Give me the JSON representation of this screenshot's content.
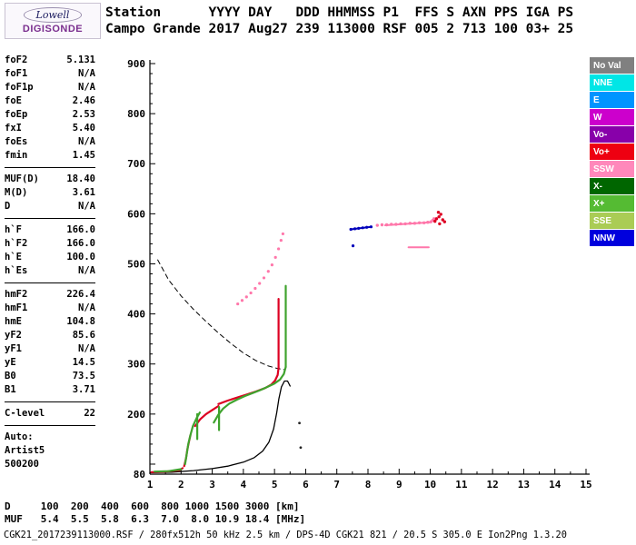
{
  "branding": {
    "name": "Lowell",
    "product": "DIGISONDE"
  },
  "header": {
    "line1": "Station      YYYY DAY   DDD HHMMSS P1  FFS S AXN PPS IGA PS",
    "line2": "Campo Grande 2017 Aug27 239 113000 RSF 005 2 713 100 03+ 25"
  },
  "params": {
    "groups": [
      {
        "rows": [
          {
            "label": "foF2",
            "value": "5.131"
          },
          {
            "label": "foF1",
            "value": "N/A"
          },
          {
            "label": "foF1p",
            "value": "N/A"
          },
          {
            "label": "foE",
            "value": "2.46"
          },
          {
            "label": "foEp",
            "value": "2.53"
          },
          {
            "label": "fxI",
            "value": "5.40"
          },
          {
            "label": "foEs",
            "value": "N/A"
          },
          {
            "label": "fmin",
            "value": "1.45"
          }
        ]
      },
      {
        "rows": [
          {
            "label": "MUF(D)",
            "value": "18.40"
          },
          {
            "label": "M(D)",
            "value": "3.61"
          },
          {
            "label": "D",
            "value": "N/A"
          }
        ]
      },
      {
        "rows": [
          {
            "label": "h`F",
            "value": "166.0"
          },
          {
            "label": "h`F2",
            "value": "166.0"
          },
          {
            "label": "h`E",
            "value": "100.0"
          },
          {
            "label": "h`Es",
            "value": "N/A"
          }
        ]
      },
      {
        "rows": [
          {
            "label": "hmF2",
            "value": "226.4"
          },
          {
            "label": "hmF1",
            "value": "N/A"
          },
          {
            "label": "hmE",
            "value": "104.8"
          },
          {
            "label": "yF2",
            "value": "85.6"
          },
          {
            "label": "yF1",
            "value": "N/A"
          },
          {
            "label": "yE",
            "value": "14.5"
          },
          {
            "label": "B0",
            "value": "73.5"
          },
          {
            "label": "B1",
            "value": "3.71"
          }
        ]
      },
      {
        "rows": [
          {
            "label": "C-level",
            "value": "22"
          }
        ]
      },
      {
        "rows": [
          {
            "label": "Auto:",
            "value": ""
          },
          {
            "label": "Artist5",
            "value": ""
          },
          {
            "label": "500200",
            "value": ""
          }
        ]
      }
    ]
  },
  "legend": {
    "items": [
      {
        "label": "No Val",
        "bg": "#808080",
        "fg": "#FFFFFF"
      },
      {
        "label": "NNE",
        "bg": "#00E6E6",
        "fg": "#FFFFFF"
      },
      {
        "label": "E",
        "bg": "#0094FF",
        "fg": "#FFFFFF"
      },
      {
        "label": "W",
        "bg": "#CC00CC",
        "fg": "#FFFFFF"
      },
      {
        "label": "Vo-",
        "bg": "#8800AA",
        "fg": "#FFFFFF"
      },
      {
        "label": "Vo+",
        "bg": "#EE0011",
        "fg": "#FFFFFF"
      },
      {
        "label": "SSW",
        "bg": "#FF88BB",
        "fg": "#FFFFFF"
      },
      {
        "label": "X-",
        "bg": "#006600",
        "fg": "#FFFFFF"
      },
      {
        "label": "X+",
        "bg": "#55BB33",
        "fg": "#FFFFFF"
      },
      {
        "label": "SSE",
        "bg": "#AACC55",
        "fg": "#FFFFFF"
      },
      {
        "label": "NNW",
        "bg": "#0000DD",
        "fg": "#FFFFFF"
      }
    ]
  },
  "chart_data": {
    "type": "scatter",
    "title": "Digisonde ionogram, Campo Grande, 2017 Aug27 113000",
    "xlabel": "[MHz]",
    "ylabel": "[km]",
    "xlim": [
      1,
      15
    ],
    "ylim": [
      80,
      900
    ],
    "grid": false,
    "legend_position": "right",
    "x_ticks": [
      1,
      2,
      3,
      4,
      5,
      6,
      7,
      8,
      9,
      10,
      11,
      12,
      13,
      14,
      15
    ],
    "y_tick_labels": [
      {
        "value": 900,
        "label": "900"
      },
      {
        "value": 800,
        "label": "800"
      },
      {
        "value": 700,
        "label": "700"
      },
      {
        "value": 600,
        "label": "600"
      },
      {
        "value": 500,
        "label": "500"
      },
      {
        "value": 400,
        "label": "400"
      },
      {
        "value": 300,
        "label": "300"
      },
      {
        "value": 200,
        "label": "200"
      },
      {
        "value": 80,
        "label": "80"
      }
    ],
    "series": [
      {
        "name": "muf-transmission-curve",
        "color": "#000000",
        "style": "dash",
        "width": 1,
        "segments": [
          [
            [
              1.25,
              508
            ],
            [
              1.6,
              468
            ],
            [
              2.0,
              436
            ],
            [
              2.4,
              409
            ],
            [
              2.8,
              385
            ],
            [
              3.2,
              362
            ],
            [
              3.6,
              341
            ],
            [
              4.0,
              322
            ],
            [
              4.4,
              307
            ],
            [
              4.8,
              296
            ],
            [
              5.1,
              291
            ],
            [
              5.3,
              289
            ]
          ]
        ]
      },
      {
        "name": "true-height-profile",
        "color": "#000000",
        "style": "line",
        "width": 1.3,
        "segments": [
          [
            [
              1.0,
              83
            ],
            [
              1.7,
              84
            ],
            [
              2.4,
              87
            ],
            [
              3.0,
              91
            ],
            [
              3.5,
              96
            ],
            [
              4.0,
              104
            ],
            [
              4.35,
              113
            ],
            [
              4.62,
              126
            ],
            [
              4.82,
              144
            ],
            [
              4.97,
              170
            ],
            [
              5.07,
              202
            ],
            [
              5.14,
              230
            ],
            [
              5.22,
              254
            ],
            [
              5.32,
              266
            ],
            [
              5.42,
              266
            ],
            [
              5.5,
              256
            ]
          ]
        ]
      },
      {
        "name": "o-trace",
        "color": "#DD0022",
        "style": "line",
        "width": 2.2,
        "segments": [
          [
            [
              1.05,
              84
            ],
            [
              1.5,
              85
            ],
            [
              1.95,
              88
            ],
            [
              2.05,
              92
            ]
          ],
          [
            [
              2.1,
              96
            ],
            [
              2.16,
              112
            ],
            [
              2.2,
              128
            ],
            [
              2.25,
              144
            ],
            [
              2.3,
              158
            ]
          ],
          [
            [
              2.45,
              176
            ],
            [
              2.62,
              190
            ],
            [
              2.8,
              200
            ],
            [
              3.0,
              208
            ],
            [
              3.2,
              216
            ]
          ],
          [
            [
              3.2,
              220
            ],
            [
              3.5,
              227
            ],
            [
              3.8,
              233
            ],
            [
              4.1,
              239
            ],
            [
              4.4,
              245
            ],
            [
              4.7,
              252
            ],
            [
              4.9,
              259
            ],
            [
              5.02,
              267
            ],
            [
              5.1,
              278
            ],
            [
              5.13,
              292
            ]
          ],
          [
            [
              5.13,
              292
            ],
            [
              5.13,
              430
            ]
          ]
        ]
      },
      {
        "name": "x-trace",
        "color": "#3FA32E",
        "style": "line",
        "width": 2.2,
        "segments": [
          [
            [
              1.15,
              85
            ],
            [
              1.6,
              86
            ],
            [
              2.0,
              90
            ]
          ],
          [
            [
              2.13,
              100
            ],
            [
              2.18,
              120
            ],
            [
              2.23,
              140
            ],
            [
              2.3,
              158
            ],
            [
              2.38,
              176
            ],
            [
              2.5,
              192
            ],
            [
              2.6,
              203
            ]
          ],
          [
            [
              2.52,
              150
            ],
            [
              2.52,
              200
            ]
          ],
          [
            [
              3.22,
              168
            ],
            [
              3.22,
              214
            ]
          ],
          [
            [
              3.05,
              183
            ],
            [
              3.2,
              199
            ],
            [
              3.35,
              211
            ],
            [
              3.55,
              221
            ],
            [
              3.8,
              229
            ],
            [
              4.05,
              236
            ],
            [
              4.3,
              242
            ],
            [
              4.55,
              248
            ],
            [
              4.8,
              255
            ],
            [
              5.0,
              261
            ],
            [
              5.18,
              269
            ],
            [
              5.3,
              280
            ],
            [
              5.36,
              294
            ]
          ],
          [
            [
              5.36,
              294
            ],
            [
              5.36,
              456
            ]
          ]
        ]
      },
      {
        "name": "second-hop-scatter",
        "color": "#FF77AA",
        "style": "dots",
        "width": 1.6,
        "points": [
          [
            3.82,
            420
          ],
          [
            3.96,
            427
          ],
          [
            4.1,
            434
          ],
          [
            4.24,
            442
          ],
          [
            4.38,
            451
          ],
          [
            4.52,
            461
          ],
          [
            4.66,
            472
          ],
          [
            4.8,
            485
          ],
          [
            4.92,
            498
          ],
          [
            5.03,
            513
          ],
          [
            5.13,
            530
          ],
          [
            5.21,
            547
          ],
          [
            5.27,
            560
          ]
        ]
      },
      {
        "name": "spread-f-pink",
        "color": "#FF77AA",
        "style": "dots",
        "width": 1.7,
        "points": [
          [
            8.3,
            577
          ],
          [
            8.45,
            578
          ],
          [
            8.6,
            578
          ],
          [
            8.75,
            579
          ],
          [
            8.9,
            579
          ],
          [
            9.05,
            580
          ],
          [
            9.2,
            580
          ],
          [
            9.35,
            581
          ],
          [
            9.5,
            581
          ],
          [
            9.65,
            582
          ],
          [
            9.8,
            582
          ],
          [
            9.92,
            583
          ],
          [
            10.02,
            584
          ],
          [
            10.08,
            587
          ],
          [
            10.12,
            590
          ]
        ]
      },
      {
        "name": "spread-f-pink-line",
        "color": "#FF77AA",
        "style": "line",
        "width": 2,
        "segments": [
          [
            [
              9.3,
              533
            ],
            [
              9.95,
              533
            ]
          ],
          [
            [
              8.55,
              577
            ],
            [
              10.0,
              583
            ]
          ]
        ]
      },
      {
        "name": "spread-f-blue",
        "color": "#0000BB",
        "style": "dots",
        "width": 1.6,
        "points": [
          [
            7.45,
            569
          ],
          [
            7.58,
            570
          ],
          [
            7.7,
            571
          ],
          [
            7.83,
            572
          ],
          [
            7.96,
            573
          ],
          [
            8.1,
            574
          ],
          [
            7.52,
            536
          ]
        ]
      },
      {
        "name": "spread-f-blue-line",
        "color": "#0000BB",
        "style": "line",
        "width": 2,
        "segments": [
          [
            [
              7.45,
              569
            ],
            [
              8.1,
              574
            ]
          ]
        ]
      },
      {
        "name": "spread-f-red",
        "color": "#DD0022",
        "style": "dots",
        "width": 1.7,
        "points": [
          [
            10.15,
            585
          ],
          [
            10.2,
            590
          ],
          [
            10.28,
            594
          ],
          [
            10.34,
            599
          ],
          [
            10.26,
            603
          ],
          [
            10.4,
            588
          ],
          [
            10.46,
            584
          ],
          [
            10.3,
            580
          ]
        ]
      },
      {
        "name": "isolated-specks",
        "color": "#222222",
        "style": "dots",
        "width": 1.4,
        "points": [
          [
            5.8,
            182
          ],
          [
            5.84,
            133
          ]
        ]
      }
    ]
  },
  "bottom": {
    "d_line": "D     100  200  400  600  800 1000 1500 3000 [km]",
    "muf_line": "MUF   5.4  5.5  5.8  6.3  7.0  8.0 10.9 18.4 [MHz]",
    "footer": "CGK21_2017239113000.RSF / 280fx512h 50 kHz 2.5 km / DPS-4D CGK21 821 / 20.5 S 305.0 E Ion2Png 1.3.20"
  }
}
